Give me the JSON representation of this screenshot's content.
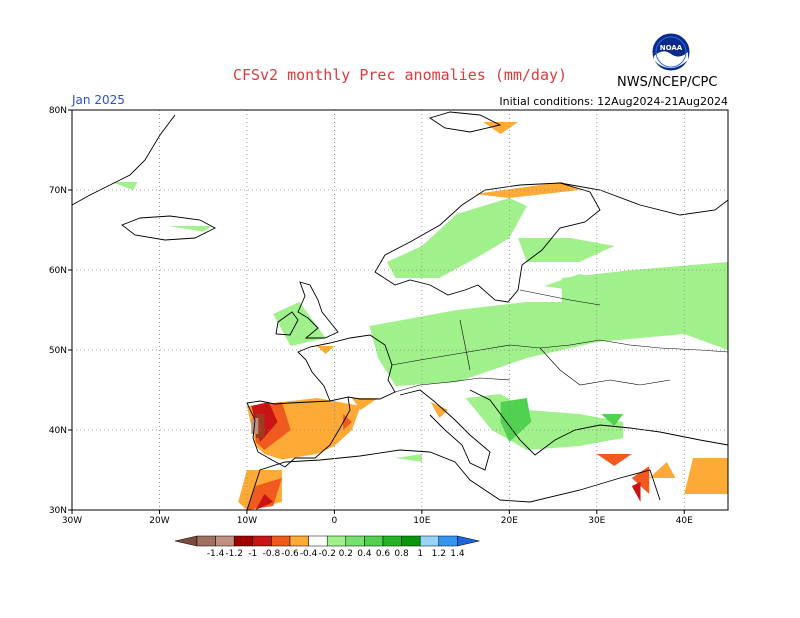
{
  "header": {
    "title": "CFSv2 monthly Prec anomalies (mm/day)",
    "month": "Jan 2025",
    "init": "Initial conditions: 12Aug2024-21Aug2024",
    "agency": "NWS/NCEP/CPC",
    "logo_text": "NOAA"
  },
  "map": {
    "lon_range": [
      -30,
      45
    ],
    "lat_range": [
      30,
      80
    ],
    "lon_ticks": [
      {
        "v": -30,
        "label": "30W"
      },
      {
        "v": -20,
        "label": "20W"
      },
      {
        "v": -10,
        "label": "10W"
      },
      {
        "v": 0,
        "label": "0"
      },
      {
        "v": 10,
        "label": "10E"
      },
      {
        "v": 20,
        "label": "20E"
      },
      {
        "v": 30,
        "label": "30E"
      },
      {
        "v": 40,
        "label": "40E"
      }
    ],
    "lat_ticks": [
      {
        "v": 30,
        "label": "30N"
      },
      {
        "v": 40,
        "label": "40N"
      },
      {
        "v": 50,
        "label": "50N"
      },
      {
        "v": 60,
        "label": "60N"
      },
      {
        "v": 70,
        "label": "70N"
      },
      {
        "v": 80,
        "label": "80N"
      }
    ],
    "anomaly_regions": [
      {
        "color": "#a0f08c",
        "points": [
          [
            -7,
            54.5
          ],
          [
            -4,
            56
          ],
          [
            -1,
            51.5
          ],
          [
            -5,
            50.5
          ]
        ]
      },
      {
        "color": "#a0f08c",
        "points": [
          [
            4,
            53
          ],
          [
            14,
            55
          ],
          [
            22,
            56
          ],
          [
            26,
            56
          ],
          [
            26,
            59
          ],
          [
            34,
            60
          ],
          [
            45,
            61
          ],
          [
            45,
            50
          ],
          [
            40,
            52
          ],
          [
            30,
            51
          ],
          [
            22,
            49
          ],
          [
            14,
            46
          ],
          [
            7,
            45.5
          ],
          [
            5,
            49
          ]
        ]
      },
      {
        "color": "#a0f08c",
        "points": [
          [
            6,
            61
          ],
          [
            10,
            63
          ],
          [
            14,
            67
          ],
          [
            20,
            69
          ],
          [
            22,
            68
          ],
          [
            20,
            64
          ],
          [
            17,
            62
          ],
          [
            12,
            59
          ],
          [
            7,
            59
          ]
        ]
      },
      {
        "color": "#a0f08c",
        "points": [
          [
            21,
            64
          ],
          [
            27,
            64
          ],
          [
            32,
            63
          ],
          [
            28,
            61
          ],
          [
            22,
            61
          ]
        ]
      },
      {
        "color": "#a0f08c",
        "points": [
          [
            24,
            58
          ],
          [
            28,
            59.5
          ],
          [
            30,
            59
          ],
          [
            27,
            57.5
          ]
        ]
      },
      {
        "color": "#a0f08c",
        "points": [
          [
            15,
            44
          ],
          [
            19,
            44.5
          ],
          [
            22,
            42.5
          ],
          [
            28,
            42
          ],
          [
            33,
            41
          ],
          [
            33,
            39
          ],
          [
            28,
            38
          ],
          [
            22,
            37.5
          ],
          [
            18,
            40
          ]
        ]
      },
      {
        "color": "#a0f08c",
        "points": [
          [
            7,
            36.5
          ],
          [
            10,
            37
          ],
          [
            10,
            36
          ]
        ]
      },
      {
        "color": "#a0f08c",
        "points": [
          [
            -25.5,
            71
          ],
          [
            -22.5,
            71
          ],
          [
            -23,
            70
          ]
        ]
      },
      {
        "color": "#a0f08c",
        "points": [
          [
            -19,
            65.5
          ],
          [
            -14,
            65.5
          ],
          [
            -15,
            64.8
          ]
        ]
      },
      {
        "color": "#50d250",
        "points": [
          [
            19,
            43.5
          ],
          [
            22,
            44
          ],
          [
            22.5,
            41
          ],
          [
            20,
            38.5
          ],
          [
            19,
            41
          ]
        ]
      },
      {
        "color": "#50d250",
        "points": [
          [
            30.5,
            42
          ],
          [
            33,
            42
          ],
          [
            32,
            40.5
          ]
        ]
      },
      {
        "color": "#fdaa36",
        "points": [
          [
            -10,
            43
          ],
          [
            -2,
            44
          ],
          [
            3,
            43
          ],
          [
            2,
            40
          ],
          [
            0,
            38
          ],
          [
            -2,
            37
          ],
          [
            -6,
            36.3
          ],
          [
            -8,
            37
          ],
          [
            -9,
            38
          ]
        ]
      },
      {
        "color": "#fdaa36",
        "points": [
          [
            2,
            44
          ],
          [
            5,
            44
          ],
          [
            3,
            42.5
          ]
        ]
      },
      {
        "color": "#fdaa36",
        "points": [
          [
            11,
            43.5
          ],
          [
            13,
            42.5
          ],
          [
            12,
            41.5
          ]
        ]
      },
      {
        "color": "#fdaa36",
        "points": [
          [
            -10,
            35
          ],
          [
            -6,
            35
          ],
          [
            -6,
            31
          ],
          [
            -10,
            30
          ],
          [
            -11,
            31
          ]
        ]
      },
      {
        "color": "#fdaa36",
        "points": [
          [
            41,
            36.5
          ],
          [
            45,
            36.5
          ],
          [
            45,
            32
          ],
          [
            40,
            32
          ]
        ]
      },
      {
        "color": "#fdaa36",
        "points": [
          [
            16,
            69.5
          ],
          [
            26,
            71
          ],
          [
            28,
            70
          ],
          [
            20,
            69
          ]
        ]
      },
      {
        "color": "#fdaa36",
        "points": [
          [
            17,
            78.5
          ],
          [
            21,
            78.5
          ],
          [
            19,
            77
          ]
        ]
      },
      {
        "color": "#fdaa36",
        "points": [
          [
            -2,
            50.5
          ],
          [
            0,
            50.5
          ],
          [
            -1,
            49.5
          ]
        ]
      },
      {
        "color": "#fdaa36",
        "points": [
          [
            36,
            34
          ],
          [
            38,
            36
          ],
          [
            39,
            34
          ]
        ]
      },
      {
        "color": "#f05a1e",
        "points": [
          [
            -9,
            43
          ],
          [
            -6,
            43.5
          ],
          [
            -5,
            40
          ],
          [
            -8,
            37.5
          ],
          [
            -9,
            38.5
          ]
        ]
      },
      {
        "color": "#f05a1e",
        "points": [
          [
            -9,
            33
          ],
          [
            -6,
            34
          ],
          [
            -7,
            30.5
          ],
          [
            -10,
            30
          ]
        ]
      },
      {
        "color": "#f05a1e",
        "points": [
          [
            1,
            42
          ],
          [
            2,
            41
          ],
          [
            1,
            40
          ]
        ]
      },
      {
        "color": "#f05a1e",
        "points": [
          [
            30,
            37
          ],
          [
            34,
            37
          ],
          [
            32,
            35.5
          ]
        ]
      },
      {
        "color": "#f05a1e",
        "points": [
          [
            34,
            34
          ],
          [
            36,
            35.5
          ],
          [
            36,
            32
          ]
        ]
      },
      {
        "color": "#c81414",
        "points": [
          [
            -9.5,
            43
          ],
          [
            -7.5,
            43.5
          ],
          [
            -6.5,
            41
          ],
          [
            -8.5,
            38.5
          ]
        ]
      },
      {
        "color": "#c81414",
        "points": [
          [
            -8,
            32
          ],
          [
            -7,
            31
          ],
          [
            -9,
            30
          ]
        ]
      },
      {
        "color": "#c81414",
        "points": [
          [
            34,
            33
          ],
          [
            35,
            33.5
          ],
          [
            35,
            31
          ]
        ]
      },
      {
        "color": "#a03c1e",
        "points": [
          [
            -9,
            42
          ],
          [
            -8,
            42
          ],
          [
            -8,
            39
          ],
          [
            -9,
            39
          ]
        ]
      },
      {
        "color": "#c09080",
        "points": [
          [
            -9.5,
            41.5
          ],
          [
            -8.7,
            41.5
          ],
          [
            -8.7,
            39.5
          ],
          [
            -9.5,
            39.5
          ]
        ]
      }
    ]
  },
  "colorbar": {
    "labels": [
      "-1.4",
      "-1.2",
      "-1",
      "-0.8",
      "-0.6",
      "-0.4",
      "-0.2",
      "0.2",
      "0.4",
      "0.6",
      "0.8",
      "1",
      "1.2",
      "1.4"
    ],
    "colors": [
      "#7a4a3a",
      "#a07060",
      "#c09080",
      "#a00000",
      "#c81414",
      "#f05a1e",
      "#fdaa36",
      "#ffffff",
      "#a0f08c",
      "#78e070",
      "#50d250",
      "#28b428",
      "#0a960a",
      "#96d2fa",
      "#3296f0",
      "#1e64dc"
    ]
  }
}
